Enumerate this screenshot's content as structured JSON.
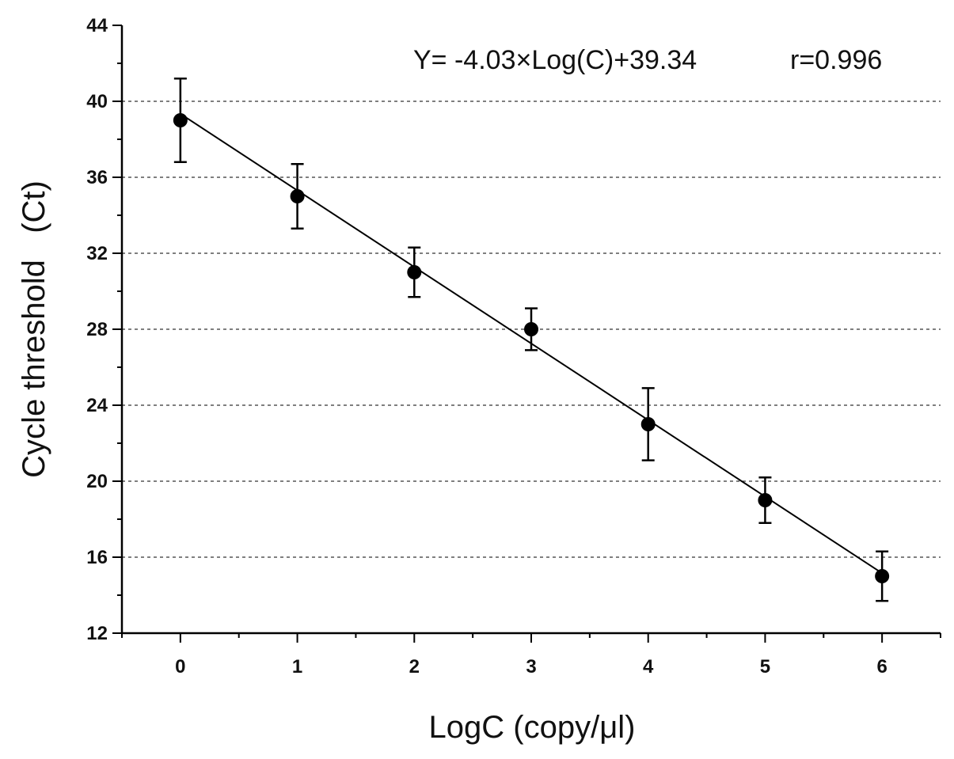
{
  "chart_data": {
    "type": "scatter",
    "xlabel": "LogC (copy/μl)",
    "ylabel": "Cycle threshold   (Ct)",
    "xlim": [
      -0.5,
      6.5
    ],
    "ylim": [
      12,
      44
    ],
    "x_ticks": [
      0,
      1,
      2,
      3,
      4,
      5,
      6
    ],
    "y_ticks": [
      12,
      16,
      20,
      24,
      28,
      32,
      36,
      40,
      44
    ],
    "grid": "horizontal dashed",
    "series": [
      {
        "x": [
          0,
          1,
          2,
          3,
          4,
          5,
          6
        ],
        "y": [
          39,
          35,
          31,
          28,
          23,
          19,
          15
        ],
        "error": [
          2.2,
          1.7,
          1.3,
          1.1,
          1.9,
          1.2,
          1.3
        ]
      }
    ],
    "fit": {
      "slope": -4.03,
      "intercept": 39.34
    },
    "annotation": {
      "equation": "Y= -4.03×Log(C)+39.34",
      "r": "r=0.996"
    },
    "colors": {
      "marker": "#000000",
      "line": "#000000",
      "grid": "#333333"
    }
  }
}
